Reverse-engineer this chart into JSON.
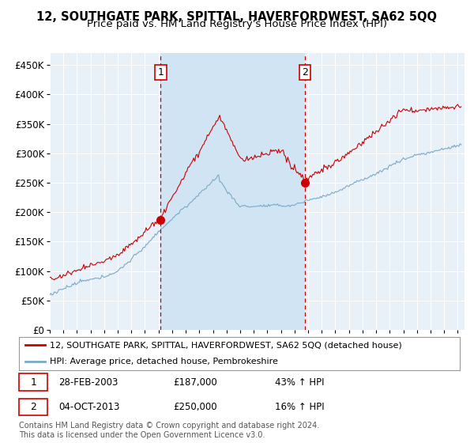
{
  "title": "12, SOUTHGATE PARK, SPITTAL, HAVERFORDWEST, SA62 5QQ",
  "subtitle": "Price paid vs. HM Land Registry's House Price Index (HPI)",
  "ylim": [
    0,
    470000
  ],
  "yticks": [
    0,
    50000,
    100000,
    150000,
    200000,
    250000,
    300000,
    350000,
    400000,
    450000
  ],
  "ytick_labels": [
    "£0",
    "£50K",
    "£100K",
    "£150K",
    "£200K",
    "£250K",
    "£300K",
    "£350K",
    "£400K",
    "£450K"
  ],
  "xlim_start": 1995.0,
  "xlim_end": 2025.5,
  "background_color": "#e8f0f8",
  "shade_color": "#d0e4f4",
  "grid_color": "#ffffff",
  "red_line_color": "#cc0000",
  "blue_line_color": "#7aaac8",
  "event1_x": 2003.16,
  "event1_y": 187000,
  "event1_date": "28-FEB-2003",
  "event1_price": "£187,000",
  "event1_hpi": "43% ↑ HPI",
  "event2_x": 2013.75,
  "event2_y": 250000,
  "event2_date": "04-OCT-2013",
  "event2_price": "£250,000",
  "event2_hpi": "16% ↑ HPI",
  "legend_label_red": "12, SOUTHGATE PARK, SPITTAL, HAVERFORDWEST, SA62 5QQ (detached house)",
  "legend_label_blue": "HPI: Average price, detached house, Pembrokeshire",
  "footer": "Contains HM Land Registry data © Crown copyright and database right 2024.\nThis data is licensed under the Open Government Licence v3.0.",
  "title_fontsize": 10.5,
  "subtitle_fontsize": 9.5
}
